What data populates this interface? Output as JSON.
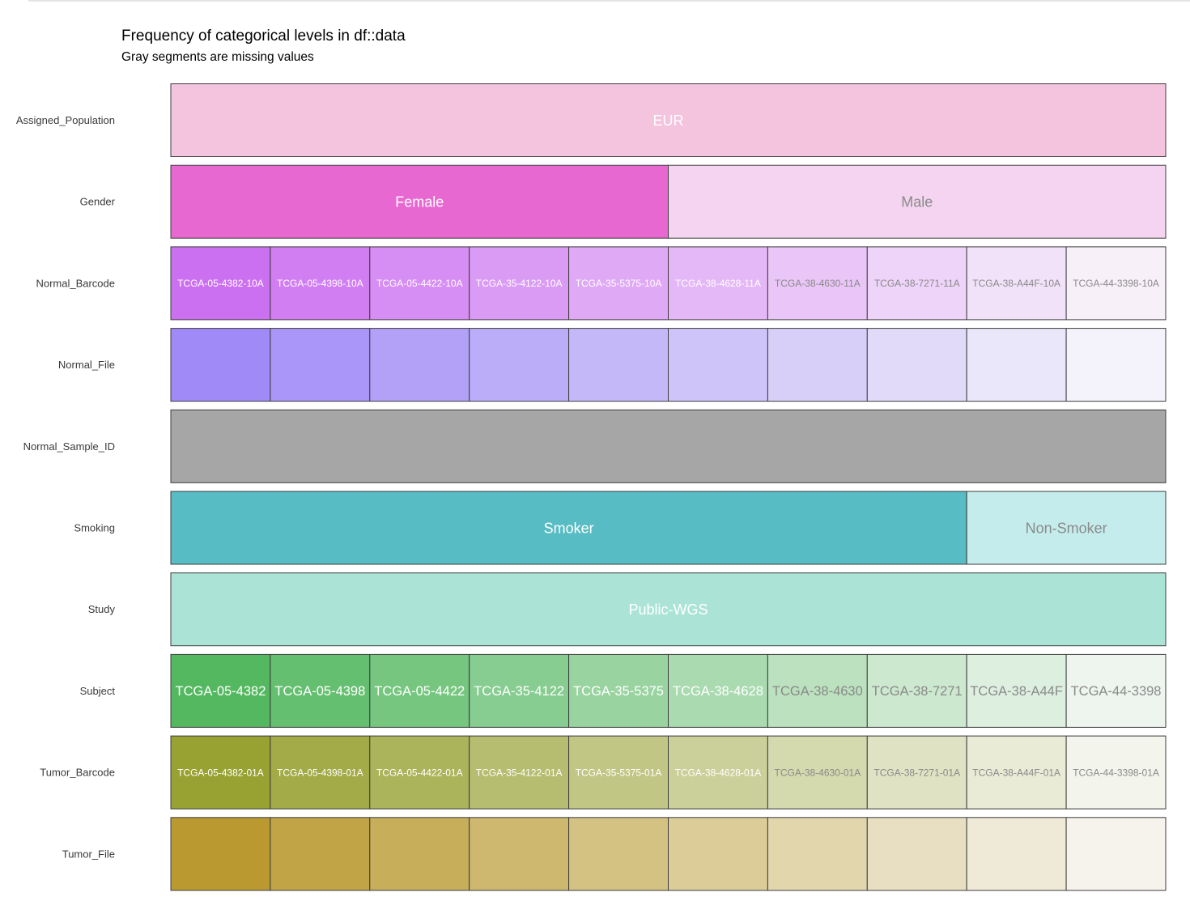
{
  "header": {
    "title": "Frequency of categorical levels in df::data",
    "subtitle": "Gray segments are missing values"
  },
  "chart_data": {
    "type": "bar",
    "orientation": "horizontal-stacked",
    "xlim": [
      0,
      1
    ],
    "rows": [
      {
        "name": "Assigned_Population",
        "base": "#f0a8cc",
        "segments": [
          {
            "label": "EUR",
            "value": 1.0,
            "color": "#f4c4de",
            "text_color": "#ffffff"
          }
        ]
      },
      {
        "name": "Gender",
        "base": "#e868d2",
        "segments": [
          {
            "label": "Female",
            "value": 0.5,
            "color": "#e868d2",
            "text_color": "#ffffff"
          },
          {
            "label": "Male",
            "value": 0.5,
            "color": "#f4d4f0",
            "text_color": "#8a8a8a"
          }
        ]
      },
      {
        "name": "Normal_Barcode",
        "base": "#cc70f2",
        "segments": [
          {
            "label": "TCGA-05-4382-10A",
            "value": 0.1
          },
          {
            "label": "TCGA-05-4398-10A",
            "value": 0.1
          },
          {
            "label": "TCGA-05-4422-10A",
            "value": 0.1
          },
          {
            "label": "TCGA-35-4122-10A",
            "value": 0.1
          },
          {
            "label": "TCGA-35-5375-10A",
            "value": 0.1
          },
          {
            "label": "TCGA-38-4628-11A",
            "value": 0.1
          },
          {
            "label": "TCGA-38-4630-11A",
            "value": 0.1
          },
          {
            "label": "TCGA-38-7271-11A",
            "value": 0.1
          },
          {
            "label": "TCGA-38-A44F-10A",
            "value": 0.1
          },
          {
            "label": "TCGA-44-3398-10A",
            "value": 0.1
          }
        ]
      },
      {
        "name": "Normal_File",
        "base": "#a08af8",
        "segments": [
          {
            "label": "",
            "value": 0.1
          },
          {
            "label": "",
            "value": 0.1
          },
          {
            "label": "",
            "value": 0.1
          },
          {
            "label": "",
            "value": 0.1
          },
          {
            "label": "",
            "value": 0.1
          },
          {
            "label": "",
            "value": 0.1
          },
          {
            "label": "",
            "value": 0.1
          },
          {
            "label": "",
            "value": 0.1
          },
          {
            "label": "",
            "value": 0.1
          },
          {
            "label": "",
            "value": 0.1
          }
        ]
      },
      {
        "name": "Normal_Sample_ID",
        "base": "#a6a6a6",
        "segments": [
          {
            "label": "",
            "value": 1.0,
            "color": "#a6a6a6",
            "missing": true
          }
        ]
      },
      {
        "name": "Smoking",
        "base": "#58bcc4",
        "segments": [
          {
            "label": "Smoker",
            "value": 0.8,
            "color": "#58bcc4",
            "text_color": "#ffffff"
          },
          {
            "label": "Non-Smoker",
            "value": 0.2,
            "color": "#c4ecec",
            "text_color": "#8a8a8a"
          }
        ]
      },
      {
        "name": "Study",
        "base": "#abe4d6",
        "segments": [
          {
            "label": "Public-WGS",
            "value": 1.0,
            "color": "#abe4d6",
            "text_color": "#ffffff"
          }
        ]
      },
      {
        "name": "Subject",
        "base": "#54b860",
        "segments": [
          {
            "label": "TCGA-05-4382",
            "value": 0.1
          },
          {
            "label": "TCGA-05-4398",
            "value": 0.1
          },
          {
            "label": "TCGA-05-4422",
            "value": 0.1
          },
          {
            "label": "TCGA-35-4122",
            "value": 0.1
          },
          {
            "label": "TCGA-35-5375",
            "value": 0.1
          },
          {
            "label": "TCGA-38-4628",
            "value": 0.1
          },
          {
            "label": "TCGA-38-4630",
            "value": 0.1
          },
          {
            "label": "TCGA-38-7271",
            "value": 0.1
          },
          {
            "label": "TCGA-38-A44F",
            "value": 0.1
          },
          {
            "label": "TCGA-44-3398",
            "value": 0.1
          }
        ]
      },
      {
        "name": "Tumor_Barcode",
        "base": "#98a232",
        "segments": [
          {
            "label": "TCGA-05-4382-01A",
            "value": 0.1
          },
          {
            "label": "TCGA-05-4398-01A",
            "value": 0.1
          },
          {
            "label": "TCGA-05-4422-01A",
            "value": 0.1
          },
          {
            "label": "TCGA-35-4122-01A",
            "value": 0.1
          },
          {
            "label": "TCGA-35-5375-01A",
            "value": 0.1
          },
          {
            "label": "TCGA-38-4628-01A",
            "value": 0.1
          },
          {
            "label": "TCGA-38-4630-01A",
            "value": 0.1
          },
          {
            "label": "TCGA-38-7271-01A",
            "value": 0.1
          },
          {
            "label": "TCGA-38-A44F-01A",
            "value": 0.1
          },
          {
            "label": "TCGA-44-3398-01A",
            "value": 0.1
          }
        ]
      },
      {
        "name": "Tumor_File",
        "base": "#ba9a30",
        "segments": [
          {
            "label": "",
            "value": 0.1
          },
          {
            "label": "",
            "value": 0.1
          },
          {
            "label": "",
            "value": 0.1
          },
          {
            "label": "",
            "value": 0.1
          },
          {
            "label": "",
            "value": 0.1
          },
          {
            "label": "",
            "value": 0.1
          },
          {
            "label": "",
            "value": 0.1
          },
          {
            "label": "",
            "value": 0.1
          },
          {
            "label": "",
            "value": 0.1
          },
          {
            "label": "",
            "value": 0.1
          }
        ]
      }
    ],
    "missing_color": "#a6a6a6",
    "grid": false,
    "legend": "none"
  }
}
